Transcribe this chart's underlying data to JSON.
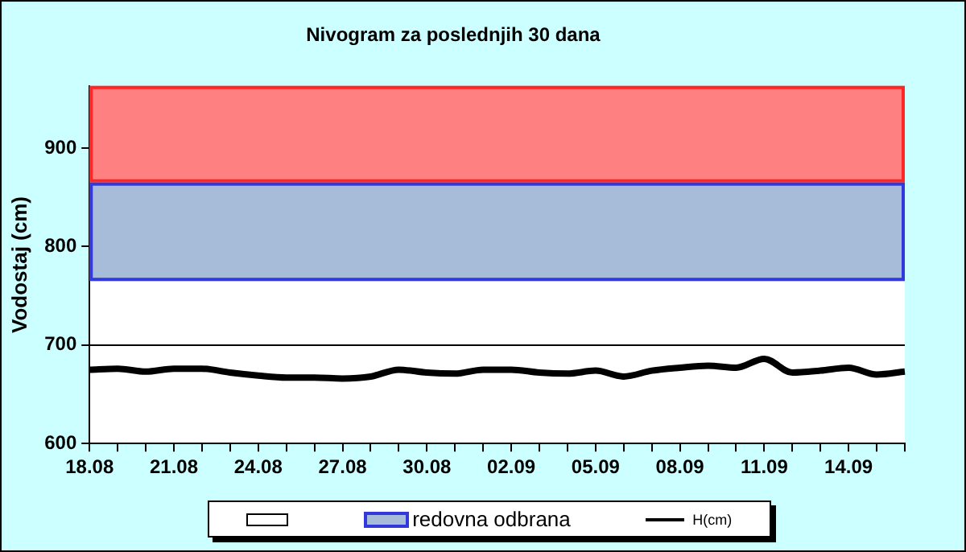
{
  "chart_data": {
    "type": "line",
    "title": "Nivogram za poslednjih 30 dana",
    "ylabel": "Vodostaj (cm)",
    "categories": [
      "18.08",
      null,
      null,
      "21.08",
      null,
      null,
      "24.08",
      null,
      null,
      "27.08",
      null,
      null,
      "30.08",
      null,
      null,
      "02.09",
      null,
      null,
      "05.09",
      null,
      null,
      "08.09",
      null,
      null,
      "11.09",
      null,
      null,
      "14.09",
      null,
      null
    ],
    "series": [
      {
        "name": "H(cm)",
        "color": "#000000",
        "values": [
          675,
          676,
          673,
          676,
          676,
          672,
          669,
          667,
          667,
          666,
          668,
          675,
          672,
          671,
          675,
          675,
          672,
          671,
          674,
          668,
          674,
          677,
          679,
          677,
          686,
          672,
          674,
          677,
          670,
          673
        ]
      }
    ],
    "ylim": [
      600,
      963
    ],
    "yticks": [
      600,
      700,
      800,
      900
    ],
    "grid": "y",
    "legend": "bottom",
    "bands": [
      {
        "axis": "y",
        "from": 865,
        "to": 963,
        "color": "#ff8080"
      },
      {
        "axis": "y",
        "from": 765,
        "to": 865,
        "label": "redovna odbrana",
        "color": "#a6bcd9"
      }
    ]
  }
}
